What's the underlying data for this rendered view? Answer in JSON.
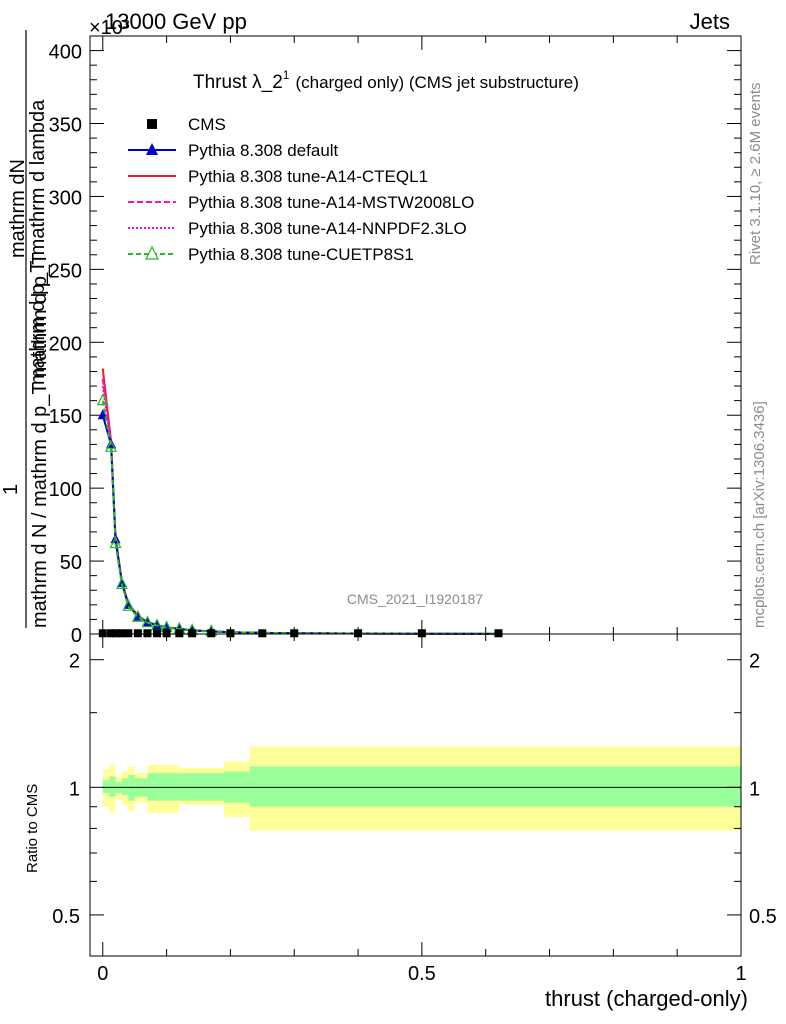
{
  "header": {
    "left": "13000 GeV pp",
    "right": "Jets",
    "exponent": "×10³"
  },
  "side_labels": {
    "rivet": "Rivet 3.1.10, ≥ 2.6M events",
    "mcplots": "mcplots.cern.ch [arXiv:1306.3436]"
  },
  "watermark": "CMS_2021_I1920187",
  "colors": {
    "cms": "#000000",
    "default": "#0000cc",
    "cteql1": "#ee1c1c",
    "mstw": "#ff1493",
    "nnpdf": "#ff00ff",
    "cuetp8s1": "#22bb22",
    "band_inner": "#99ff99",
    "band_outer": "#ffff99"
  },
  "chart_data": [
    {
      "type": "line",
      "title": "Thrust λ_2¹ (charged only) (CMS jet substructure)",
      "title_main": "Thrust λ_2",
      "title_sup": "1",
      "title_rest": "(charged only) (CMS jet substructure)",
      "ylabel_lines": [
        "mathrm dN",
        "mathrm d p_T mathrm d lambda",
        "1",
        "mathrm d N / mathrm d p_T mathrm d p_T"
      ],
      "ylim": [
        0,
        410
      ],
      "xlim": [
        -0.02,
        1.0
      ],
      "yticks": [
        "0",
        "50",
        "100",
        "150",
        "200",
        "250",
        "300",
        "350",
        "400"
      ],
      "legend_position": "top-left",
      "x": [
        0.0,
        0.013,
        0.02,
        0.03,
        0.04,
        0.055,
        0.07,
        0.085,
        0.1,
        0.12,
        0.14,
        0.17,
        0.2,
        0.25,
        0.3,
        0.4,
        0.5,
        0.62
      ],
      "series": [
        {
          "name": "CMS",
          "style": "square",
          "values": [
            0.5,
            0.5,
            0.5,
            0.5,
            0.5,
            0.5,
            0.5,
            0.5,
            0.5,
            0.5,
            0.5,
            0.5,
            0.5,
            0.5,
            0.5,
            0.5,
            0.5,
            0.5
          ]
        },
        {
          "name": "Pythia 8.308 default",
          "style": "triangle",
          "values": [
            150,
            130,
            65,
            35,
            20,
            12,
            8,
            6,
            4.5,
            3.5,
            2.5,
            1.8,
            1.2,
            0.8,
            0.5,
            0.3,
            0.2,
            0.1
          ]
        },
        {
          "name": "Pythia 8.308 tune-A14-CTEQL1",
          "style": "solid",
          "values": [
            182,
            132,
            66,
            36,
            21,
            12.5,
            8.2,
            6.1,
            4.6,
            3.5,
            2.5,
            1.8,
            1.2,
            0.8,
            0.5,
            0.3,
            0.2,
            0.1
          ]
        },
        {
          "name": "Pythia 8.308 tune-A14-MSTW2008LO",
          "style": "dashed",
          "values": [
            175,
            131,
            65,
            35,
            20,
            12,
            8,
            6,
            4.5,
            3.5,
            2.5,
            1.8,
            1.2,
            0.8,
            0.5,
            0.3,
            0.2,
            0.1
          ]
        },
        {
          "name": "Pythia 8.308 tune-A14-NNPDF2.3LO",
          "style": "dotted",
          "values": [
            170,
            130,
            64,
            35,
            20,
            12,
            8,
            6,
            4.5,
            3.5,
            2.5,
            1.8,
            1.2,
            0.8,
            0.5,
            0.3,
            0.2,
            0.1
          ]
        },
        {
          "name": "Pythia 8.308 tune-CUETP8S1",
          "style": "open-triangle",
          "values": [
            160,
            128,
            62,
            34,
            19,
            11.5,
            7.8,
            5.8,
            4.4,
            3.4,
            2.4,
            1.7,
            1.2,
            0.8,
            0.5,
            0.3,
            0.2,
            0.1
          ]
        }
      ]
    },
    {
      "type": "area",
      "ylabel": "Ratio to CMS",
      "xlabel": "thrust (charged-only)",
      "ylim": [
        0.4,
        2.3
      ],
      "yticks": [
        "0.5",
        "1",
        "2"
      ],
      "xticks": [
        "0",
        "0.5",
        "1"
      ],
      "xlim": [
        -0.02,
        1.0
      ],
      "bins": [
        {
          "x": [
            0.0,
            0.01
          ],
          "inner": [
            0.97,
            1.04
          ],
          "outer": [
            0.9,
            1.1
          ]
        },
        {
          "x": [
            0.01,
            0.02
          ],
          "inner": [
            0.95,
            1.06
          ],
          "outer": [
            0.87,
            1.13
          ]
        },
        {
          "x": [
            0.02,
            0.03
          ],
          "inner": [
            0.97,
            1.03
          ],
          "outer": [
            0.94,
            1.06
          ]
        },
        {
          "x": [
            0.03,
            0.04
          ],
          "inner": [
            0.96,
            1.05
          ],
          "outer": [
            0.91,
            1.09
          ]
        },
        {
          "x": [
            0.04,
            0.05
          ],
          "inner": [
            0.93,
            1.07
          ],
          "outer": [
            0.88,
            1.12
          ]
        },
        {
          "x": [
            0.05,
            0.07
          ],
          "inner": [
            0.95,
            1.05
          ],
          "outer": [
            0.92,
            1.08
          ]
        },
        {
          "x": [
            0.07,
            0.12
          ],
          "inner": [
            0.93,
            1.08
          ],
          "outer": [
            0.87,
            1.13
          ]
        },
        {
          "x": [
            0.12,
            0.19
          ],
          "inner": [
            0.93,
            1.08
          ],
          "outer": [
            0.91,
            1.11
          ]
        },
        {
          "x": [
            0.19,
            0.23
          ],
          "inner": [
            0.92,
            1.09
          ],
          "outer": [
            0.85,
            1.15
          ]
        },
        {
          "x": [
            0.23,
            1.0
          ],
          "inner": [
            0.9,
            1.12
          ],
          "outer": [
            0.79,
            1.25
          ]
        }
      ],
      "reference": 1.0
    }
  ]
}
